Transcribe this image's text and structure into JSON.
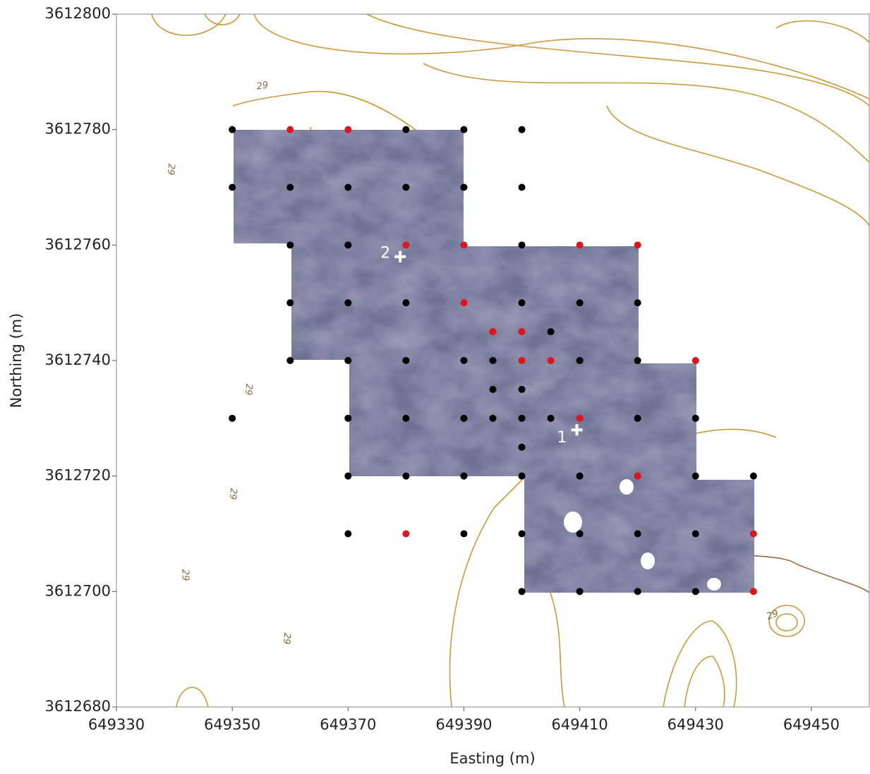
{
  "chart_data": {
    "type": "scatter",
    "xlabel": "Easting (m)",
    "ylabel": "Northing (m)",
    "xlim": [
      649330,
      649460
    ],
    "xticks": [
      649330,
      649350,
      649370,
      649390,
      649410,
      649430,
      649450
    ],
    "ylim": [
      3612680,
      3612800
    ],
    "yticks": [
      3612680,
      3612700,
      3612720,
      3612740,
      3612760,
      3612780,
      3612800
    ],
    "grid": false,
    "series": [
      {
        "color": "#000000",
        "x": [
          649350,
          649380,
          649390,
          649400,
          649350,
          649360,
          649370,
          649380,
          649390,
          649400,
          649360,
          649370,
          649400,
          649360,
          649370,
          649380,
          649400,
          649410,
          649420,
          649405,
          649360,
          649370,
          649380,
          649390,
          649395,
          649410,
          649420,
          649395,
          649400,
          649350,
          649370,
          649380,
          649390,
          649395,
          649400,
          649405,
          649420,
          649430,
          649400,
          649370,
          649380,
          649390,
          649400,
          649410,
          649430,
          649440,
          649370,
          649390,
          649400,
          649410,
          649420,
          649430,
          649400,
          649410,
          649420,
          649430
        ],
        "values": [
          3612780,
          3612780,
          3612780,
          3612780,
          3612770,
          3612770,
          3612770,
          3612770,
          3612770,
          3612770,
          3612760,
          3612760,
          3612760,
          3612750,
          3612750,
          3612750,
          3612750,
          3612750,
          3612750,
          3612745,
          3612740,
          3612740,
          3612740,
          3612740,
          3612740,
          3612740,
          3612740,
          3612735,
          3612735,
          3612730,
          3612730,
          3612730,
          3612730,
          3612730,
          3612730,
          3612730,
          3612730,
          3612730,
          3612725,
          3612720,
          3612720,
          3612720,
          3612720,
          3612720,
          3612720,
          3612720,
          3612710,
          3612710,
          3612710,
          3612710,
          3612710,
          3612710,
          3612700,
          3612700,
          3612700,
          3612700
        ]
      },
      {
        "color": "#e3131b",
        "x": [
          649360,
          649370,
          649380,
          649390,
          649410,
          649420,
          649390,
          649395,
          649400,
          649400,
          649405,
          649430,
          649410,
          649420,
          649380,
          649440,
          649440
        ],
        "values": [
          3612780,
          3612780,
          3612760,
          3612760,
          3612760,
          3612760,
          3612750,
          3612745,
          3612745,
          3612740,
          3612740,
          3612740,
          3612730,
          3612720,
          3612710,
          3612710,
          3612700
        ]
      }
    ],
    "markers": [
      {
        "label": "1",
        "x": 649409.5,
        "y": 3612728
      },
      {
        "label": "2",
        "x": 649379,
        "y": 3612758
      }
    ],
    "contour_labels": [
      "29",
      "29",
      "29",
      "29",
      "29",
      "29",
      "29"
    ]
  }
}
